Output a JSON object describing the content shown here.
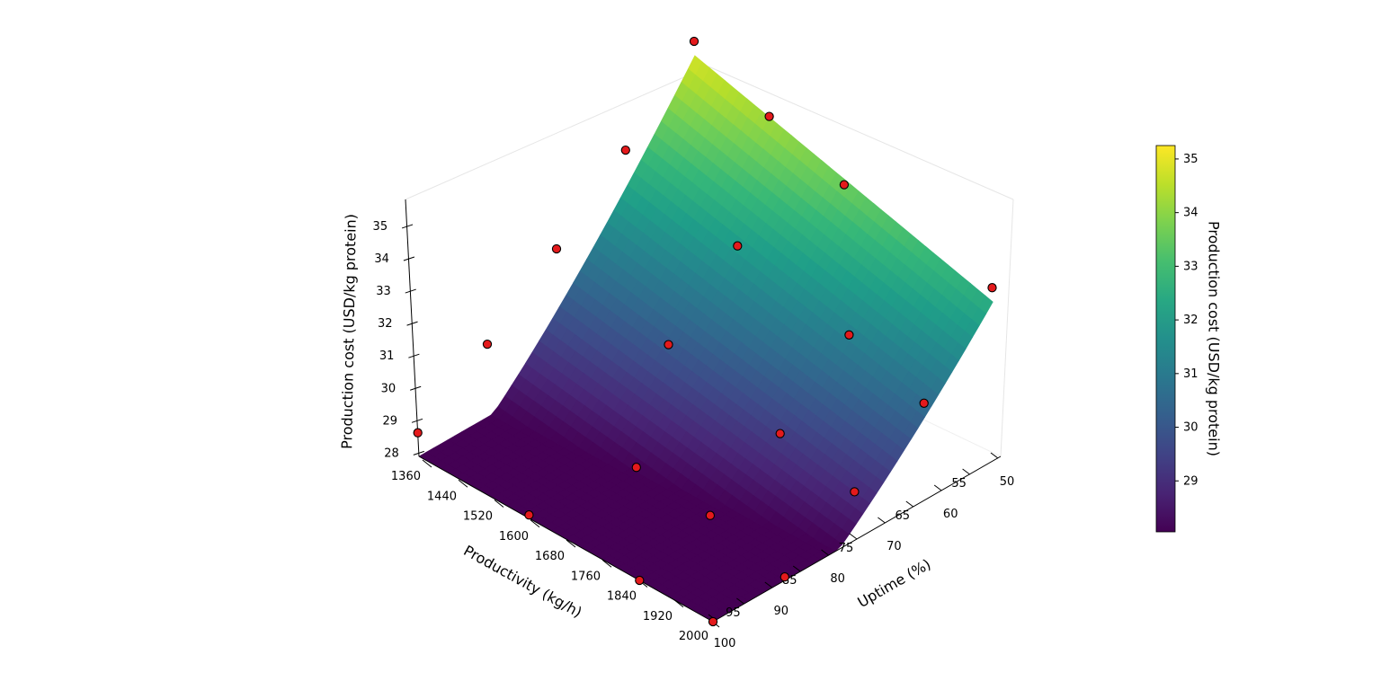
{
  "chart_data": {
    "type": "surface3d",
    "title": "",
    "zlabel": "Production cost (USD/kg protein)",
    "xlabel": "Uptime (%)",
    "ylabel": "Productivity (kg/h)",
    "colorbar_label": "Production cost (USD/kg protein)",
    "colormap": "viridis",
    "z_ticks": [
      "28",
      "29",
      "30",
      "31",
      "32",
      "33",
      "34",
      "35"
    ],
    "productivity_ticks": [
      "1360",
      "1440",
      "1520",
      "1600",
      "1680",
      "1760",
      "1840",
      "1920",
      "2000"
    ],
    "uptime_ticks": [
      "50",
      "55",
      "60",
      "65",
      "70",
      "75",
      "80",
      "85",
      "90",
      "95",
      "100"
    ],
    "colorbar_ticks": [
      "29",
      "30",
      "31",
      "32",
      "33",
      "34",
      "35"
    ],
    "uptime_range": [
      50,
      100
    ],
    "productivity_range": [
      1360,
      2000
    ],
    "z_range": [
      27.9,
      35.3
    ],
    "points": [
      {
        "uptime": 50,
        "productivity": 1360,
        "cost": 35.3
      },
      {
        "uptime": 50,
        "productivity": 1520,
        "cost": 34.3
      },
      {
        "uptime": 50,
        "productivity": 1680,
        "cost": 33.5
      },
      {
        "uptime": 50,
        "productivity": 2000,
        "cost": 32.9
      },
      {
        "uptime": 62.5,
        "productivity": 1360,
        "cost": 33.3
      },
      {
        "uptime": 62.5,
        "productivity": 1600,
        "cost": 32.3
      },
      {
        "uptime": 62.5,
        "productivity": 1840,
        "cost": 31.5
      },
      {
        "uptime": 62.5,
        "productivity": 2000,
        "cost": 30.7
      },
      {
        "uptime": 75,
        "productivity": 1360,
        "cost": 31.6
      },
      {
        "uptime": 75,
        "productivity": 1600,
        "cost": 30.6
      },
      {
        "uptime": 75,
        "productivity": 1840,
        "cost": 29.8
      },
      {
        "uptime": 75,
        "productivity": 2000,
        "cost": 29.3
      },
      {
        "uptime": 87.5,
        "productivity": 1360,
        "cost": 30.0
      },
      {
        "uptime": 87.5,
        "productivity": 1680,
        "cost": 28.8
      },
      {
        "uptime": 87.5,
        "productivity": 1840,
        "cost": 28.6
      },
      {
        "uptime": 87.5,
        "productivity": 2000,
        "cost": 28.0
      },
      {
        "uptime": 100,
        "productivity": 1360,
        "cost": 28.6
      },
      {
        "uptime": 100,
        "productivity": 1600,
        "cost": 28.0
      },
      {
        "uptime": 100,
        "productivity": 1840,
        "cost": 27.9
      },
      {
        "uptime": 100,
        "productivity": 2000,
        "cost": 27.9
      }
    ],
    "marker_color": "#e41a1c",
    "grid": true,
    "legend": "none"
  }
}
